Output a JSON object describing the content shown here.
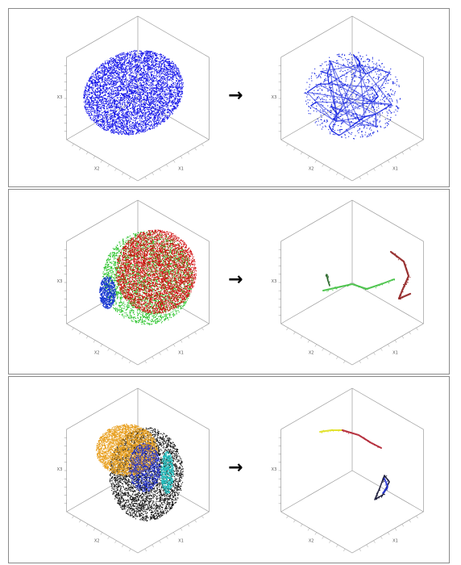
{
  "figure": {
    "rows": [
      {
        "arrow": "→",
        "left": {
          "axis_label_a": "X2",
          "axis_label_b": "X1",
          "axis_label_c": "X3",
          "clouds": [
            {
              "color": "#1010e8",
              "kind": "dense-ellipse"
            }
          ]
        },
        "right": {
          "axis_label_a": "X2",
          "axis_label_b": "X1",
          "axis_label_c": "X3",
          "clouds": [
            {
              "color": "#1020e0",
              "kind": "network"
            }
          ]
        }
      },
      {
        "arrow": "→",
        "left": {
          "axis_label_a": "X2",
          "axis_label_b": "X1",
          "axis_label_c": "X3",
          "clouds": [
            {
              "color": "#d01010",
              "kind": "dense-ellipse"
            },
            {
              "color": "#20c020",
              "kind": "dense-band"
            },
            {
              "color": "#1030d0",
              "kind": "small-patch"
            }
          ]
        },
        "right": {
          "axis_label_a": "X2",
          "axis_label_b": "X1",
          "axis_label_c": "X3",
          "clouds": [
            {
              "color": "#40c040",
              "kind": "curve"
            },
            {
              "color": "#902020",
              "kind": "curve"
            },
            {
              "color": "#206020",
              "kind": "short-curve"
            }
          ]
        }
      },
      {
        "arrow": "→",
        "left": {
          "axis_label_a": "X2",
          "axis_label_b": "X1",
          "axis_label_c": "X3",
          "clouds": [
            {
              "color": "#e8a020",
              "kind": "dense-ellipse"
            },
            {
              "color": "#101010",
              "kind": "dense-band"
            },
            {
              "color": "#2030d0",
              "kind": "small-patch"
            },
            {
              "color": "#20c0c0",
              "kind": "small-patch"
            }
          ]
        },
        "right": {
          "axis_label_a": "X2",
          "axis_label_b": "X1",
          "axis_label_c": "X3",
          "clouds": [
            {
              "color": "#e0e020",
              "kind": "curve"
            },
            {
              "color": "#b02030",
              "kind": "curve"
            },
            {
              "color": "#101030",
              "kind": "curve"
            },
            {
              "color": "#2030d0",
              "kind": "short-curve"
            }
          ]
        }
      }
    ]
  }
}
